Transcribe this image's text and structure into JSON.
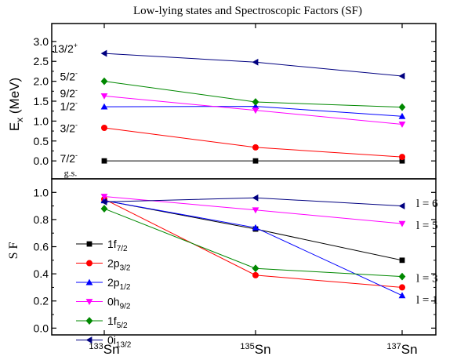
{
  "chart_data": {
    "title": "Low-lying states and Spectroscopic Factors (SF)",
    "x": {
      "categories": [
        {
          "base": "133",
          "label": "Sn"
        },
        {
          "base": "135",
          "label": "Sn"
        },
        {
          "base": "137",
          "label": "Sn"
        }
      ]
    },
    "panels": [
      {
        "id": "energy",
        "type": "line",
        "ylabel": {
          "main": "E",
          "sub": "x",
          "unit": " (MeV)"
        },
        "ylim": [
          -0.45,
          3.45
        ],
        "yticks": [
          "0.0",
          "0.5",
          "1.0",
          "1.5",
          "2.0",
          "2.5",
          "3.0"
        ],
        "state_labels": [
          {
            "text": "13/2",
            "sup": "+",
            "y": 2.82
          },
          {
            "text": "5/2",
            "sup": "-",
            "y": 2.12
          },
          {
            "text": "9/2",
            "sup": "-",
            "y": 1.7
          },
          {
            "text": "1/2",
            "sup": "-",
            "y": 1.37
          },
          {
            "text": "3/2",
            "sup": "-",
            "y": 0.82
          },
          {
            "text": "7/2",
            "sup": "-",
            "y": 0.06
          }
        ],
        "gs_label": "g.s.",
        "series": [
          {
            "color": "#000000",
            "marker": "square",
            "values": [
              0.0,
              0.0,
              0.0
            ]
          },
          {
            "color": "#ff0000",
            "marker": "circle",
            "values": [
              0.83,
              0.34,
              0.1
            ]
          },
          {
            "color": "#0000ff",
            "marker": "triangle-up",
            "values": [
              1.36,
              1.37,
              1.12
            ]
          },
          {
            "color": "#ff00ff",
            "marker": "triangle-down",
            "values": [
              1.63,
              1.27,
              0.92
            ]
          },
          {
            "color": "#008800",
            "marker": "diamond",
            "values": [
              2.0,
              1.48,
              1.35
            ]
          },
          {
            "color": "#000080",
            "marker": "triangle-left",
            "values": [
              2.7,
              2.48,
              2.13
            ]
          }
        ]
      },
      {
        "id": "sf",
        "type": "line",
        "ylabel": "S F",
        "ylim": [
          -0.05,
          1.1
        ],
        "yticks": [
          "0.0",
          "0.2",
          "0.4",
          "0.6",
          "0.8",
          "1.0"
        ],
        "l_labels": [
          {
            "text": "l = 6",
            "y": 0.92
          },
          {
            "text": "l = 5",
            "y": 0.76
          },
          {
            "text": "l = 3",
            "y": 0.37
          },
          {
            "text": "l = 1",
            "y": 0.21
          }
        ],
        "legend": {
          "placement": "left"
        },
        "series": [
          {
            "name": "1f",
            "sub": "7/2",
            "color": "#000000",
            "marker": "square",
            "values": [
              0.94,
              0.73,
              0.5
            ]
          },
          {
            "name": "2p",
            "sub": "3/2",
            "color": "#ff0000",
            "marker": "circle",
            "values": [
              0.95,
              0.39,
              0.3
            ]
          },
          {
            "name": "2p",
            "sub": "1/2",
            "color": "#0000ff",
            "marker": "triangle-up",
            "values": [
              0.94,
              0.74,
              0.24
            ]
          },
          {
            "name": "0h",
            "sub": "9/2",
            "color": "#ff00ff",
            "marker": "triangle-down",
            "values": [
              0.97,
              0.87,
              0.77
            ]
          },
          {
            "name": "1f",
            "sub": "5/2",
            "color": "#008800",
            "marker": "diamond",
            "values": [
              0.88,
              0.44,
              0.38
            ]
          },
          {
            "name": "0i",
            "sub": "13/2",
            "color": "#000080",
            "marker": "triangle-left",
            "values": [
              0.93,
              0.96,
              0.9
            ]
          }
        ]
      }
    ]
  }
}
